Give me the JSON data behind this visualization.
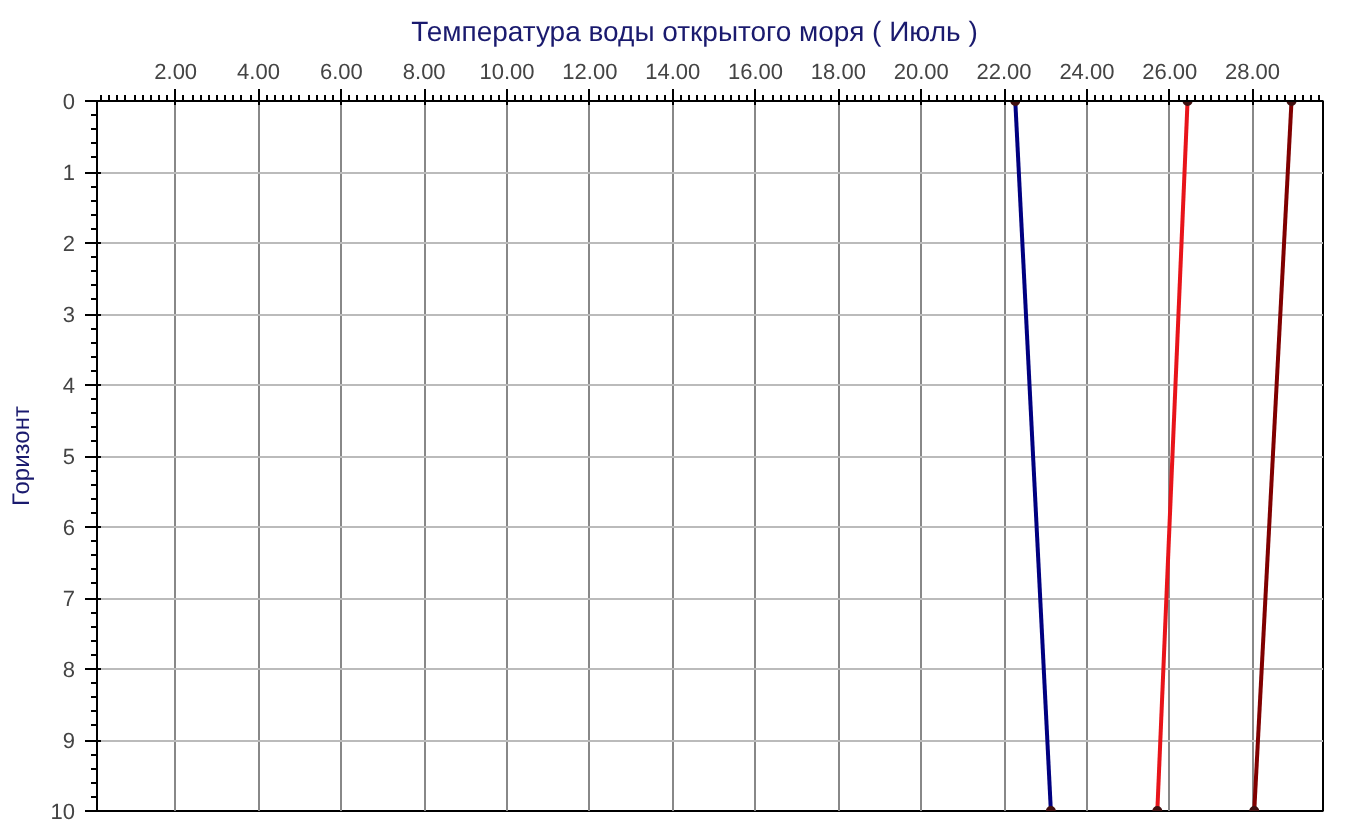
{
  "chart_data": {
    "type": "line",
    "title": "Температура воды открытого моря     ( Июль )",
    "ylabel": "Горизонт",
    "xlim": [
      0.1,
      29.7
    ],
    "xticks": [
      {
        "value": 2,
        "label": "2.00"
      },
      {
        "value": 4,
        "label": "4.00"
      },
      {
        "value": 6,
        "label": "6.00"
      },
      {
        "value": 8,
        "label": "8.00"
      },
      {
        "value": 10,
        "label": "10.00"
      },
      {
        "value": 12,
        "label": "12.00"
      },
      {
        "value": 14,
        "label": "14.00"
      },
      {
        "value": 16,
        "label": "16.00"
      },
      {
        "value": 18,
        "label": "18.00"
      },
      {
        "value": 20,
        "label": "20.00"
      },
      {
        "value": 22,
        "label": "22.00"
      },
      {
        "value": 24,
        "label": "24.00"
      },
      {
        "value": 26,
        "label": "26.00"
      },
      {
        "value": 28,
        "label": "28.00"
      }
    ],
    "ylim": [
      10,
      0
    ],
    "yticks": [
      0,
      1,
      2,
      3,
      4,
      5,
      6,
      7,
      8,
      9,
      10
    ],
    "grid": true,
    "marker": "circle",
    "line_style": "solid",
    "series": [
      {
        "color": "#000080",
        "x": [
          22.27,
          23.13
        ],
        "values": [
          0,
          10
        ]
      },
      {
        "color": "#e8141a",
        "x": [
          26.43,
          25.7
        ],
        "values": [
          0,
          10
        ]
      },
      {
        "color": "#800000",
        "x": [
          28.94,
          28.04
        ],
        "values": [
          0,
          10
        ]
      }
    ]
  }
}
